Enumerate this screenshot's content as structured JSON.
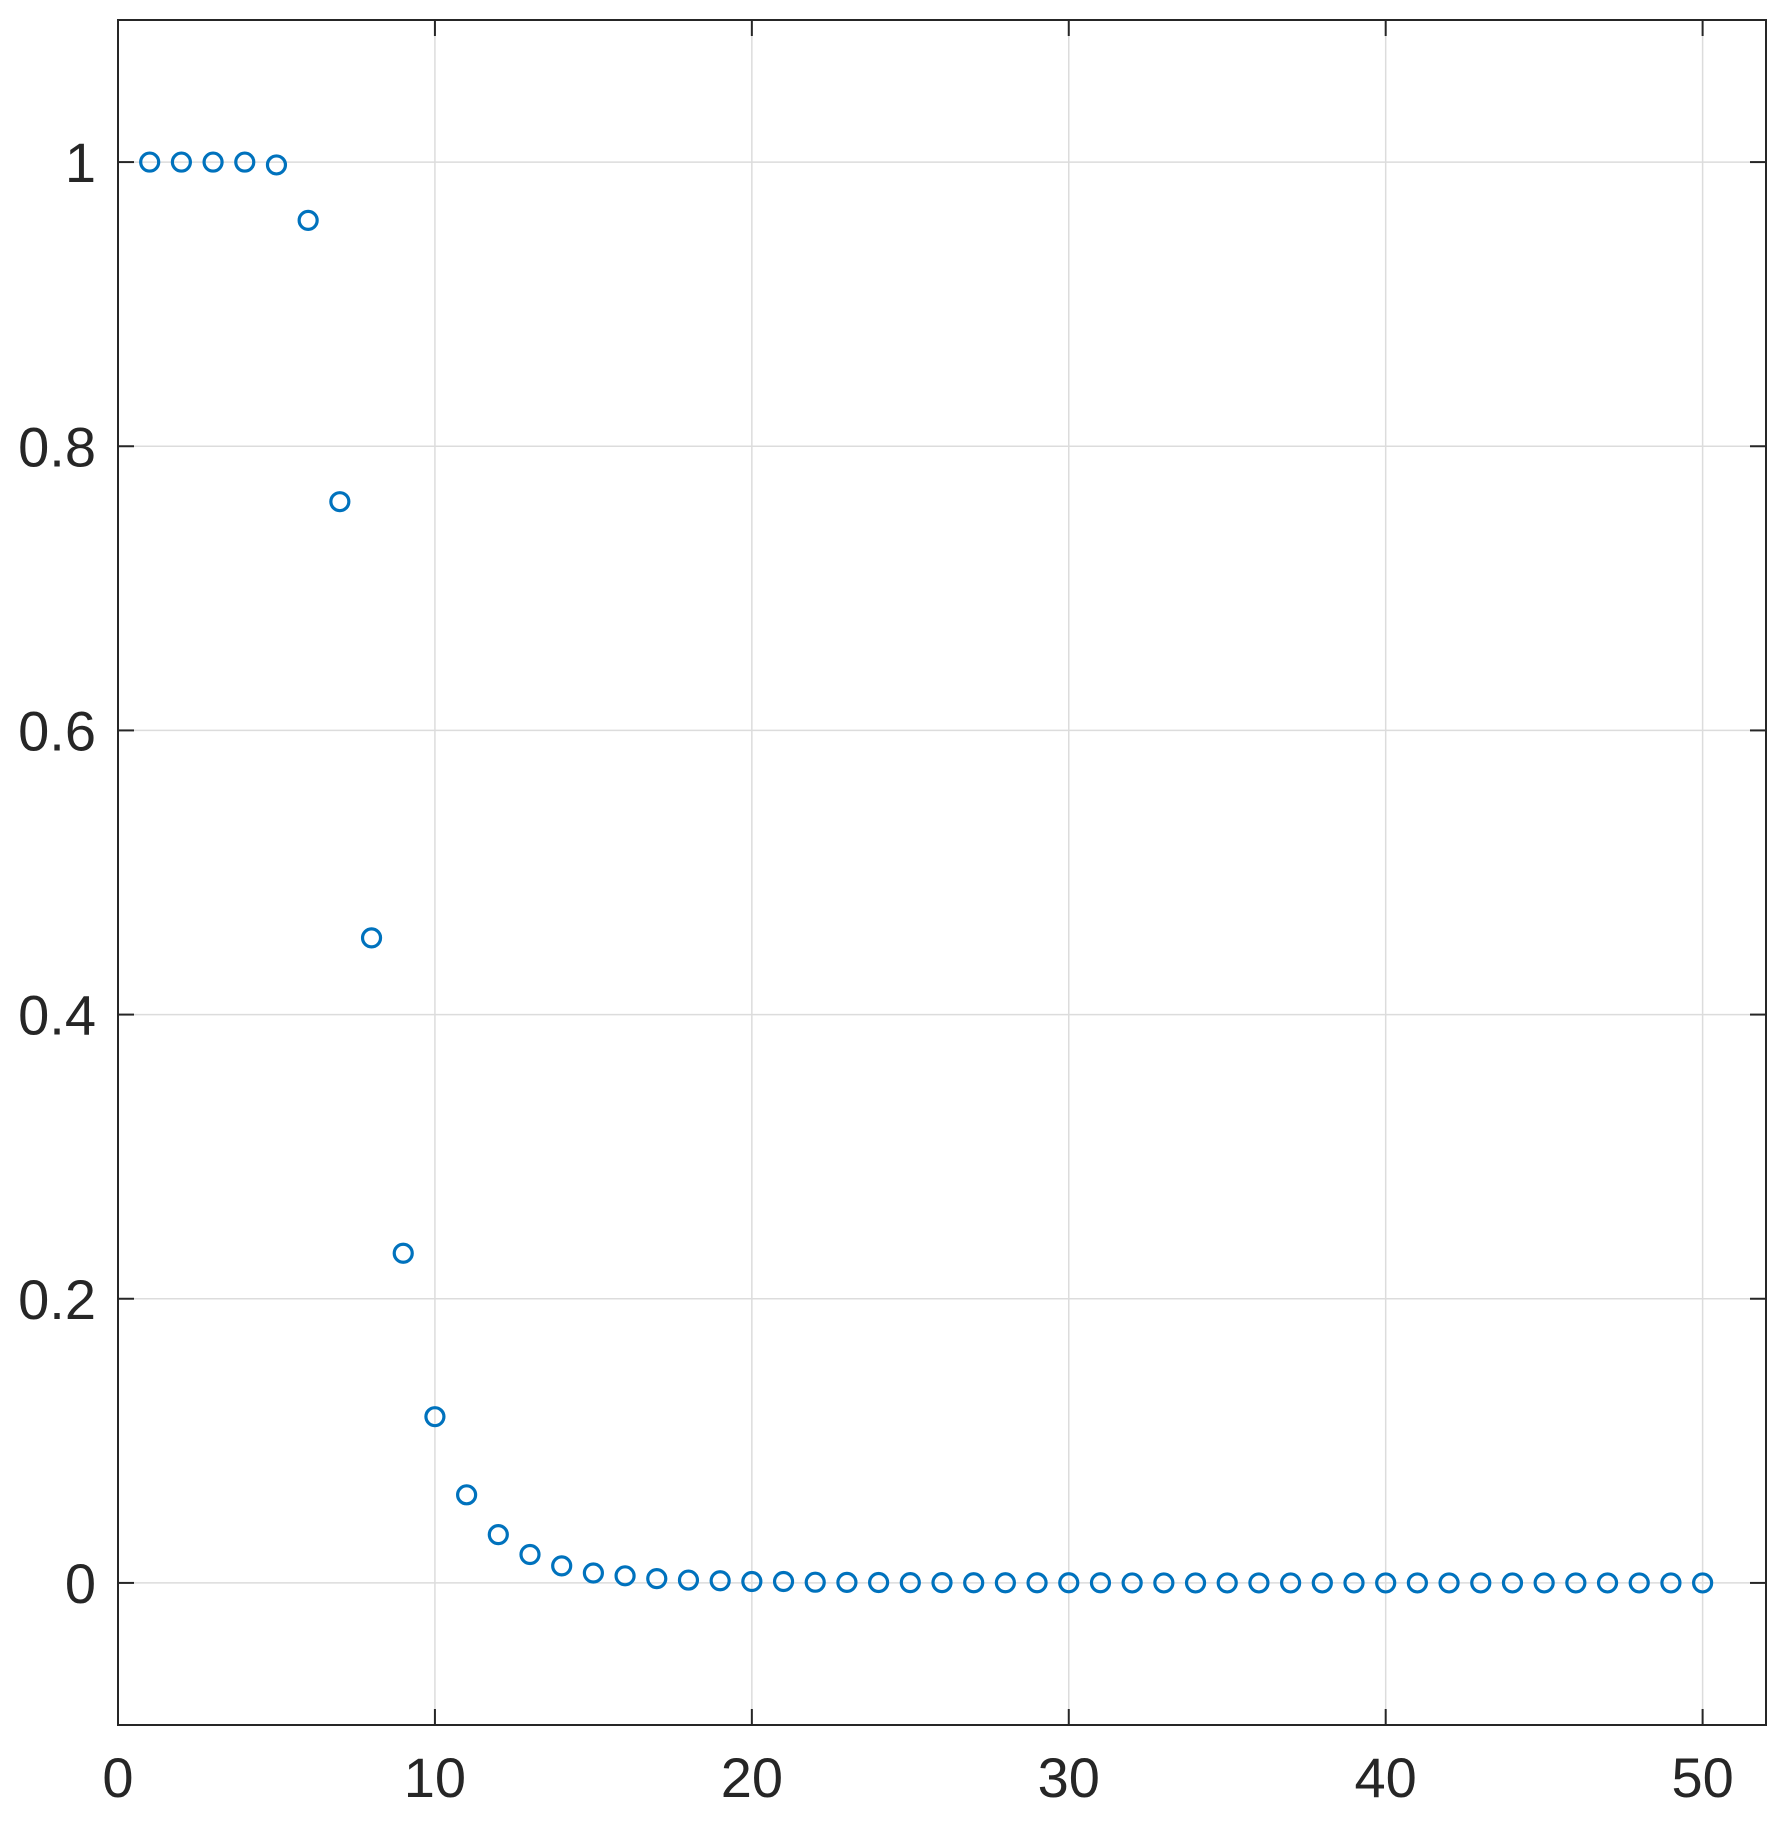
{
  "chart_data": {
    "type": "scatter",
    "title": "",
    "xlabel": "",
    "ylabel": "",
    "xlim": [
      0,
      52
    ],
    "ylim": [
      -0.1,
      1.1
    ],
    "xticks": [
      0,
      10,
      20,
      30,
      40,
      50
    ],
    "yticks": [
      0,
      0.2,
      0.4,
      0.6,
      0.8,
      1
    ],
    "xtick_labels": [
      "0",
      "10",
      "20",
      "30",
      "40",
      "50"
    ],
    "ytick_labels": [
      "0",
      "0.2",
      "0.4",
      "0.6",
      "0.8",
      "1"
    ],
    "grid": true,
    "marker": "open-circle",
    "color": "#0072BD",
    "series": [
      {
        "x": [
          1,
          2,
          3,
          4,
          5,
          6,
          7,
          8,
          9,
          10,
          11,
          12,
          13,
          14,
          15,
          16,
          17,
          18,
          19,
          20,
          21,
          22,
          23,
          24,
          25,
          26,
          27,
          28,
          29,
          30,
          31,
          32,
          33,
          34,
          35,
          36,
          37,
          38,
          39,
          40,
          41,
          42,
          43,
          44,
          45,
          46,
          47,
          48,
          49,
          50
        ],
        "y": [
          1.0,
          1.0,
          1.0,
          1.0,
          0.998,
          0.959,
          0.761,
          0.454,
          0.232,
          0.117,
          0.062,
          0.034,
          0.02,
          0.012,
          0.007,
          0.005,
          0.003,
          0.002,
          0.0015,
          0.001,
          0.001,
          0.0005,
          0.0004,
          0.0003,
          0.0002,
          0.0002,
          0.0001,
          0.0001,
          0.0001,
          0.0001,
          0.0001,
          0,
          0,
          0,
          0,
          0,
          0,
          0,
          0,
          0,
          0,
          0,
          0,
          0,
          0,
          0,
          0,
          0,
          0,
          0
        ]
      }
    ]
  }
}
